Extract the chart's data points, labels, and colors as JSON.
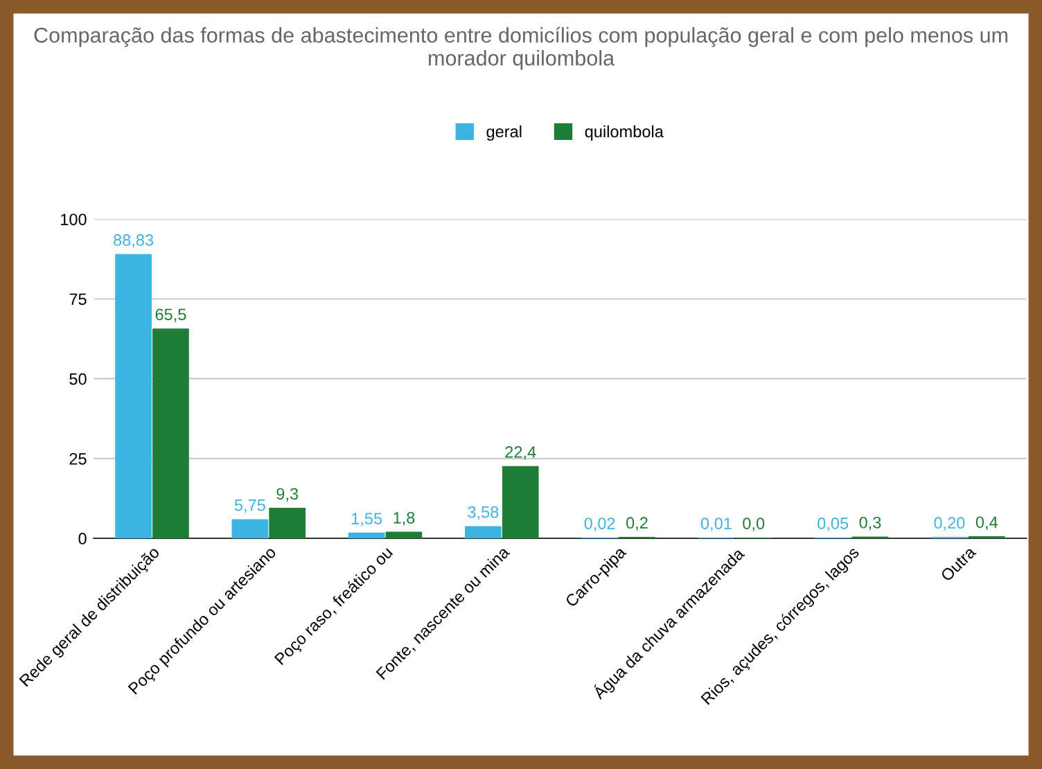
{
  "chart_data": {
    "type": "bar",
    "title": "Comparação das formas de abastecimento entre domicílios com população geral e com pelo menos um morador quilombola",
    "categories": [
      "Rede geral de distribuição",
      "Poço profundo ou artesiano",
      "Poço raso, freático ou",
      "Fonte, nascente ou mina",
      "Carro-pipa",
      "Água da chuva armazenada",
      "Rios, açudes, córregos, lagos",
      "Outra"
    ],
    "series": [
      {
        "name": "geral",
        "color": "#3db3e0",
        "values": [
          88.83,
          5.75,
          1.55,
          3.58,
          0.02,
          0.01,
          0.05,
          0.2
        ],
        "value_labels": [
          "88,83",
          "5,75",
          "1,55",
          "3,58",
          "0,02",
          "0,01",
          "0,05",
          "0,20"
        ]
      },
      {
        "name": "quilombola",
        "color": "#1e7e35",
        "values": [
          65.5,
          9.3,
          1.8,
          22.4,
          0.2,
          0.0,
          0.3,
          0.4
        ],
        "value_labels": [
          "65,5",
          "9,3",
          "1,8",
          "22,4",
          "0,2",
          "0,0",
          "0,3",
          "0,4"
        ]
      }
    ],
    "ylim": [
      0,
      100
    ],
    "yticks": [
      0,
      25,
      50,
      75,
      100
    ],
    "grid": "y",
    "legend": "top"
  }
}
